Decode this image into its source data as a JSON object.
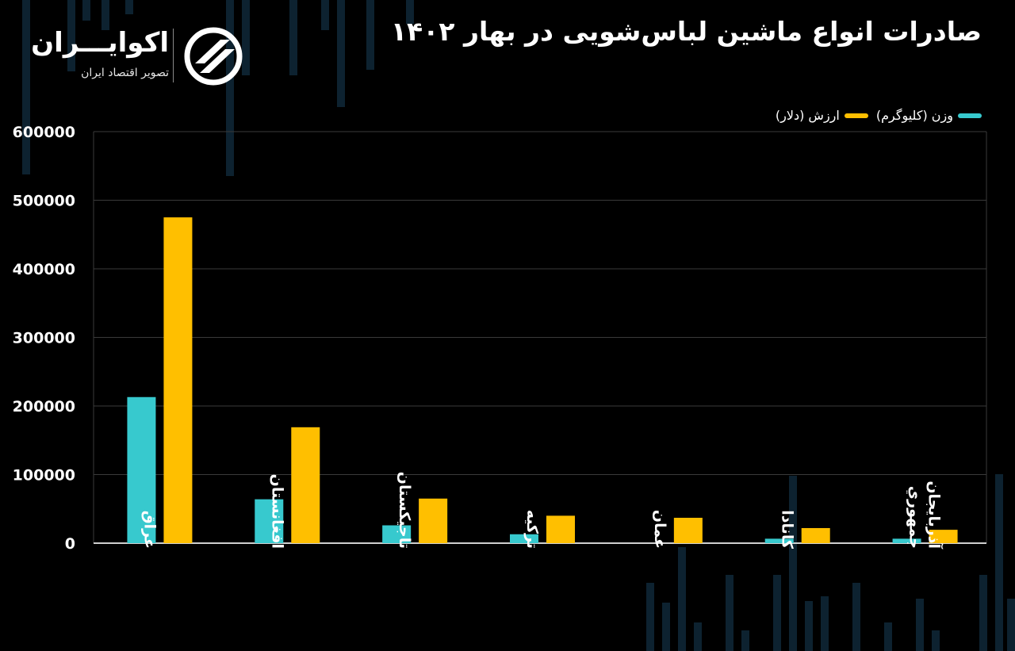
{
  "title": "صادرات انواع ماشین لباس‌شویی در بهار ۱۴۰۲",
  "brand": {
    "name": "اکوایـــران",
    "tagline": "تصویر اقتصاد ایران"
  },
  "colors": {
    "background": "#000000",
    "weight": "#37c9ce",
    "value": "#ffbf00",
    "grid": "#3a3a3a",
    "text": "#ffffff"
  },
  "chart_data": {
    "type": "bar",
    "categories": [
      "عراق",
      "افغانستان",
      "تاجیکستان",
      "ترکیه",
      "عمان",
      "کانادا",
      "جمهوري آذربایجان"
    ],
    "series": [
      {
        "name": "وزن (کلیوگرم)",
        "color": "#37c9ce",
        "values": [
          213000,
          64000,
          26000,
          13000,
          0,
          6500,
          6500
        ]
      },
      {
        "name": "ارزش (دلار)",
        "color": "#ffbf00",
        "values": [
          475000,
          169000,
          65000,
          40000,
          37000,
          22000,
          19500
        ]
      }
    ],
    "ylim": [
      0,
      600000
    ],
    "yticks": [
      0,
      100000,
      200000,
      300000,
      400000,
      500000,
      600000
    ],
    "ytick_labels": [
      "0",
      "100000",
      "200000",
      "300000",
      "400000",
      "500000",
      "600000"
    ],
    "grid": true,
    "legend_position": "top-right"
  }
}
